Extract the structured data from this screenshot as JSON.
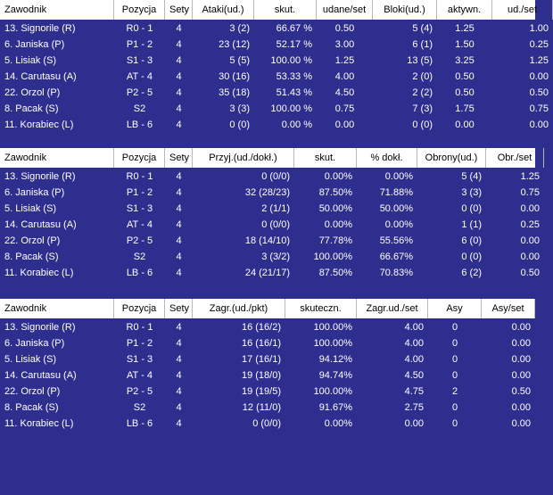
{
  "tables": [
    {
      "headers": [
        "Zawodnik",
        "Pozycja",
        "Sety",
        "Ataki(ud.)",
        "skut.",
        "udane/set",
        "Bloki(ud.)",
        "aktywn.",
        "ud./set"
      ],
      "rows": [
        [
          "13. Signorile (R)",
          "R0 - 1",
          "4",
          "3 (2)",
          "66.67 %",
          "0.50",
          "5 (4)",
          "1.25",
          "1.00"
        ],
        [
          "6. Janiska (P)",
          "P1 - 2",
          "4",
          "23 (12)",
          "52.17 %",
          "3.00",
          "6 (1)",
          "1.50",
          "0.25"
        ],
        [
          "5. Lisiak (S)",
          "S1 - 3",
          "4",
          "5 (5)",
          "100.00 %",
          "1.25",
          "13 (5)",
          "3.25",
          "1.25"
        ],
        [
          "14. Carutasu (A)",
          "AT - 4",
          "4",
          "30 (16)",
          "53.33 %",
          "4.00",
          "2 (0)",
          "0.50",
          "0.00"
        ],
        [
          "22. Orzol (P)",
          "P2 - 5",
          "4",
          "35 (18)",
          "51.43 %",
          "4.50",
          "2 (2)",
          "0.50",
          "0.50"
        ],
        [
          "8. Pacak (S)",
          "S2",
          "4",
          "3 (3)",
          "100.00 %",
          "0.75",
          "7 (3)",
          "1.75",
          "0.75"
        ],
        [
          "11. Korabiec (L)",
          "LB - 6",
          "4",
          "0 (0)",
          "0.00 %",
          "0.00",
          "0 (0)",
          "0.00",
          "0.00"
        ]
      ]
    },
    {
      "headers": [
        "Zawodnik",
        "Pozycja",
        "Sety",
        "Przyj.(ud./dokł.)",
        "skut.",
        "% dokł.",
        "Obrony(ud.)",
        "Obr./set"
      ],
      "rows": [
        [
          "13. Signorile (R)",
          "R0 - 1",
          "4",
          "0 (0/0)",
          "0.00%",
          "0.00%",
          "5 (4)",
          "1.25"
        ],
        [
          "6. Janiska (P)",
          "P1 - 2",
          "4",
          "32 (28/23)",
          "87.50%",
          "71.88%",
          "3 (3)",
          "0.75"
        ],
        [
          "5. Lisiak (S)",
          "S1 - 3",
          "4",
          "2 (1/1)",
          "50.00%",
          "50.00%",
          "0 (0)",
          "0.00"
        ],
        [
          "14. Carutasu (A)",
          "AT - 4",
          "4",
          "0 (0/0)",
          "0.00%",
          "0.00%",
          "1 (1)",
          "0.25"
        ],
        [
          "22. Orzol (P)",
          "P2 - 5",
          "4",
          "18 (14/10)",
          "77.78%",
          "55.56%",
          "6 (0)",
          "0.00"
        ],
        [
          "8. Pacak (S)",
          "S2",
          "4",
          "3 (3/2)",
          "100.00%",
          "66.67%",
          "0 (0)",
          "0.00"
        ],
        [
          "11. Korabiec (L)",
          "LB - 6",
          "4",
          "24 (21/17)",
          "87.50%",
          "70.83%",
          "6 (2)",
          "0.50"
        ]
      ]
    },
    {
      "headers": [
        "Zawodnik",
        "Pozycja",
        "Sety",
        "Zagr.(ud./pkt)",
        "skuteczn.",
        "Zagr.ud./set",
        "Asy",
        "Asy/set"
      ],
      "rows": [
        [
          "13. Signorile (R)",
          "R0 - 1",
          "4",
          "16 (16/2)",
          "100.00%",
          "4.00",
          "0",
          "0.00"
        ],
        [
          "6. Janiska (P)",
          "P1 - 2",
          "4",
          "16 (16/1)",
          "100.00%",
          "4.00",
          "0",
          "0.00"
        ],
        [
          "5. Lisiak (S)",
          "S1 - 3",
          "4",
          "17 (16/1)",
          "94.12%",
          "4.00",
          "0",
          "0.00"
        ],
        [
          "14. Carutasu (A)",
          "AT - 4",
          "4",
          "19 (18/0)",
          "94.74%",
          "4.50",
          "0",
          "0.00"
        ],
        [
          "22. Orzol (P)",
          "P2 - 5",
          "4",
          "19 (19/5)",
          "100.00%",
          "4.75",
          "2",
          "0.50"
        ],
        [
          "8. Pacak (S)",
          "S2",
          "4",
          "12 (11/0)",
          "91.67%",
          "2.75",
          "0",
          "0.00"
        ],
        [
          "11. Korabiec (L)",
          "LB - 6",
          "4",
          "0 (0/0)",
          "0.00%",
          "0.00",
          "0",
          "0.00"
        ]
      ]
    }
  ]
}
